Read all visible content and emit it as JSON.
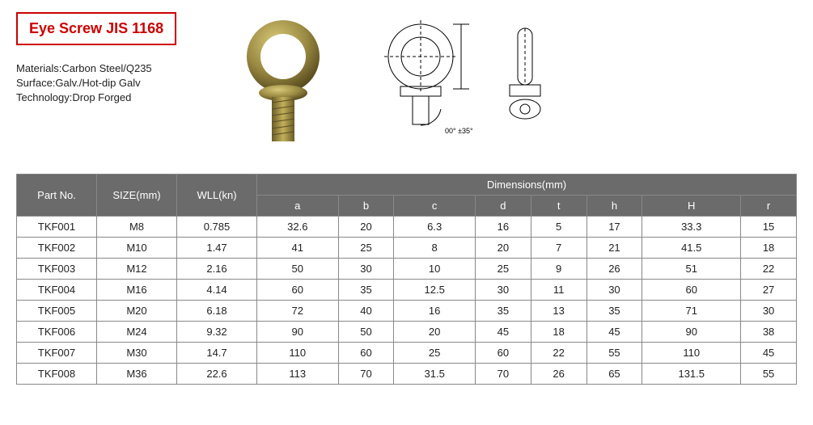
{
  "title": "Eye Screw JIS 1168",
  "specs": {
    "materials_label": "Materials:",
    "materials_value": "Carbon Steel/Q235",
    "surface_label": "Surface:",
    "surface_value": "Galv./Hot-dip Galv",
    "technology_label": "Technology:",
    "technology_value": "Drop Forged"
  },
  "diagram_angle": "00° ±35°",
  "table": {
    "header_part": "Part No.",
    "header_size": "SIZE(mm)",
    "header_wll": "WLL(kn)",
    "header_dims": "Dimensions(mm)",
    "dim_cols": [
      "a",
      "b",
      "c",
      "d",
      "t",
      "h",
      "H",
      "r"
    ],
    "rows": [
      {
        "part": "TKF001",
        "size": "M8",
        "wll": "0.785",
        "a": "32.6",
        "b": "20",
        "c": "6.3",
        "d": "16",
        "t": "5",
        "h": "17",
        "H": "33.3",
        "r": "15"
      },
      {
        "part": "TKF002",
        "size": "M10",
        "wll": "1.47",
        "a": "41",
        "b": "25",
        "c": "8",
        "d": "20",
        "t": "7",
        "h": "21",
        "H": "41.5",
        "r": "18"
      },
      {
        "part": "TKF003",
        "size": "M12",
        "wll": "2.16",
        "a": "50",
        "b": "30",
        "c": "10",
        "d": "25",
        "t": "9",
        "h": "26",
        "H": "51",
        "r": "22"
      },
      {
        "part": "TKF004",
        "size": "M16",
        "wll": "4.14",
        "a": "60",
        "b": "35",
        "c": "12.5",
        "d": "30",
        "t": "11",
        "h": "30",
        "H": "60",
        "r": "27"
      },
      {
        "part": "TKF005",
        "size": "M20",
        "wll": "6.18",
        "a": "72",
        "b": "40",
        "c": "16",
        "d": "35",
        "t": "13",
        "h": "35",
        "H": "71",
        "r": "30"
      },
      {
        "part": "TKF006",
        "size": "M24",
        "wll": "9.32",
        "a": "90",
        "b": "50",
        "c": "20",
        "d": "45",
        "t": "18",
        "h": "45",
        "H": "90",
        "r": "38"
      },
      {
        "part": "TKF007",
        "size": "M30",
        "wll": "14.7",
        "a": "110",
        "b": "60",
        "c": "25",
        "d": "60",
        "t": "22",
        "h": "55",
        "H": "110",
        "r": "45"
      },
      {
        "part": "TKF008",
        "size": "M36",
        "wll": "22.6",
        "a": "113",
        "b": "70",
        "c": "31.5",
        "d": "70",
        "t": "26",
        "h": "65",
        "H": "131.5",
        "r": "55"
      }
    ]
  },
  "colors": {
    "title_border": "#c00",
    "title_text": "#c00",
    "th_bg": "#6b6b6b",
    "th_text": "#ffffff",
    "border": "#888888",
    "text": "#222222",
    "bg": "#ffffff",
    "bolt_top": "#c2b05a",
    "bolt_mid": "#8a7a3a",
    "bolt_dark": "#5a4d20"
  }
}
